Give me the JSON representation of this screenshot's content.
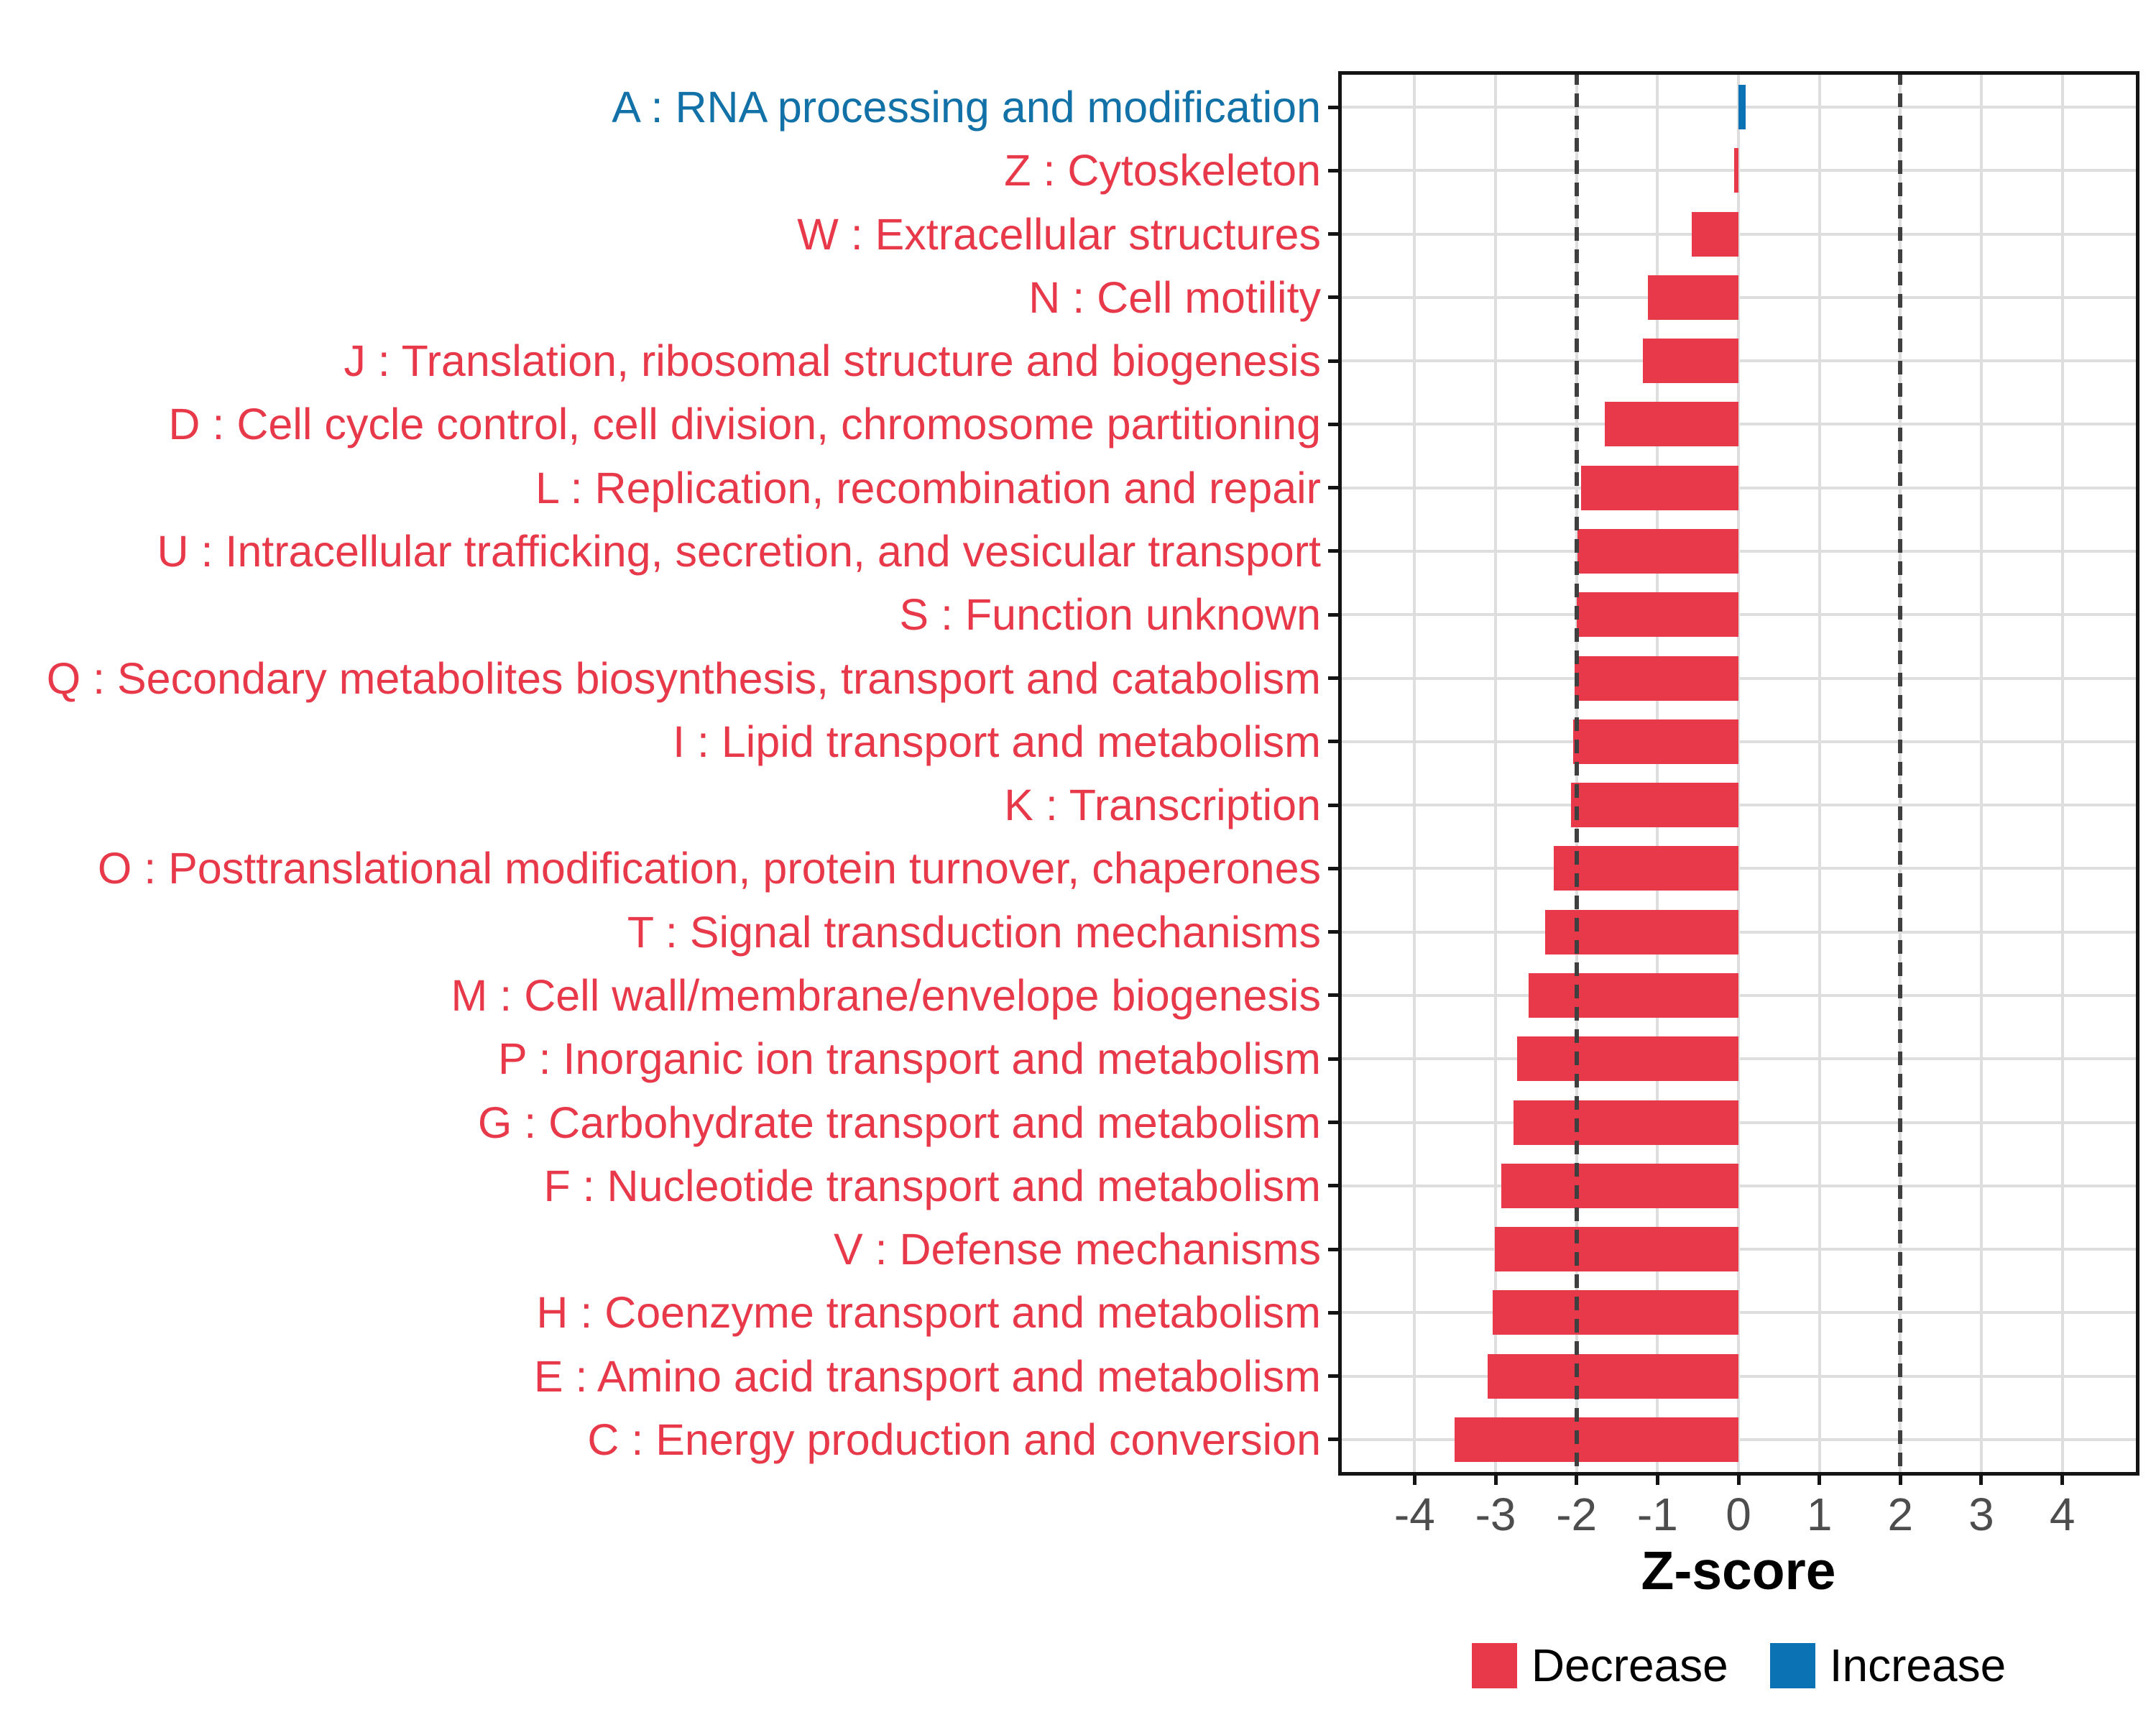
{
  "figure": {
    "xlabel": "Z-score",
    "legend": [
      {
        "label": "Decrease",
        "color": "#E8394A"
      },
      {
        "label": "Increase",
        "color": "#0B73B3"
      }
    ]
  },
  "axis": {
    "x_tick_labels": [
      "-4",
      "-3",
      "-2",
      "-1",
      "0",
      "1",
      "2",
      "3",
      "4"
    ],
    "x_tick_values": [
      -4,
      -3,
      -2,
      -1,
      0,
      1,
      2,
      3,
      4
    ],
    "x_range": [
      -4.95,
      4.95
    ],
    "reference_lines": [
      -2,
      2
    ],
    "tick_label_color": "#4D4D4D"
  },
  "style": {
    "bar_decrease_color": "#E8394A",
    "bar_increase_color": "#0B73B3",
    "label_decrease_color": "#E8394A",
    "label_increase_color": "#1272A8",
    "gridline_color": "#DEDEDE",
    "refline_color": "#3F3F3F",
    "panel_border_color": "#141414"
  },
  "chart_data": {
    "type": "bar",
    "orientation": "horizontal",
    "title": "",
    "xlabel": "Z-score",
    "ylabel": "",
    "xlim": [
      -4.95,
      4.95
    ],
    "grid": true,
    "legend_position": "bottom",
    "categories": [
      "A : RNA processing and modification",
      "Z : Cytoskeleton",
      "W : Extracellular structures",
      "N : Cell motility",
      "J : Translation, ribosomal structure and biogenesis",
      "D : Cell cycle control, cell division, chromosome partitioning",
      "L : Replication, recombination and repair",
      "U : Intracellular trafficking, secretion, and vesicular transport",
      "S : Function unknown",
      "Q : Secondary metabolites biosynthesis, transport and catabolism",
      "I : Lipid transport and metabolism",
      "K : Transcription",
      "O : Posttranslational modification, protein turnover, chaperones",
      "T : Signal transduction mechanisms",
      "M : Cell wall/membrane/envelope biogenesis",
      "P : Inorganic ion transport and metabolism",
      "G : Carbohydrate transport and metabolism",
      "F : Nucleotide transport and metabolism",
      "V : Defense mechanisms",
      "H : Coenzyme transport and metabolism",
      "E : Amino acid transport and metabolism",
      "C : Energy production and conversion"
    ],
    "values": [
      0.09,
      -0.05,
      -0.58,
      -1.12,
      -1.18,
      -1.65,
      -1.94,
      -1.99,
      -2.0,
      -2.02,
      -2.04,
      -2.07,
      -2.28,
      -2.39,
      -2.59,
      -2.73,
      -2.78,
      -2.93,
      -3.01,
      -3.04,
      -3.1,
      -3.51
    ],
    "series_group": [
      "Increase",
      "Decrease",
      "Decrease",
      "Decrease",
      "Decrease",
      "Decrease",
      "Decrease",
      "Decrease",
      "Decrease",
      "Decrease",
      "Decrease",
      "Decrease",
      "Decrease",
      "Decrease",
      "Decrease",
      "Decrease",
      "Decrease",
      "Decrease",
      "Decrease",
      "Decrease",
      "Decrease",
      "Decrease"
    ]
  }
}
